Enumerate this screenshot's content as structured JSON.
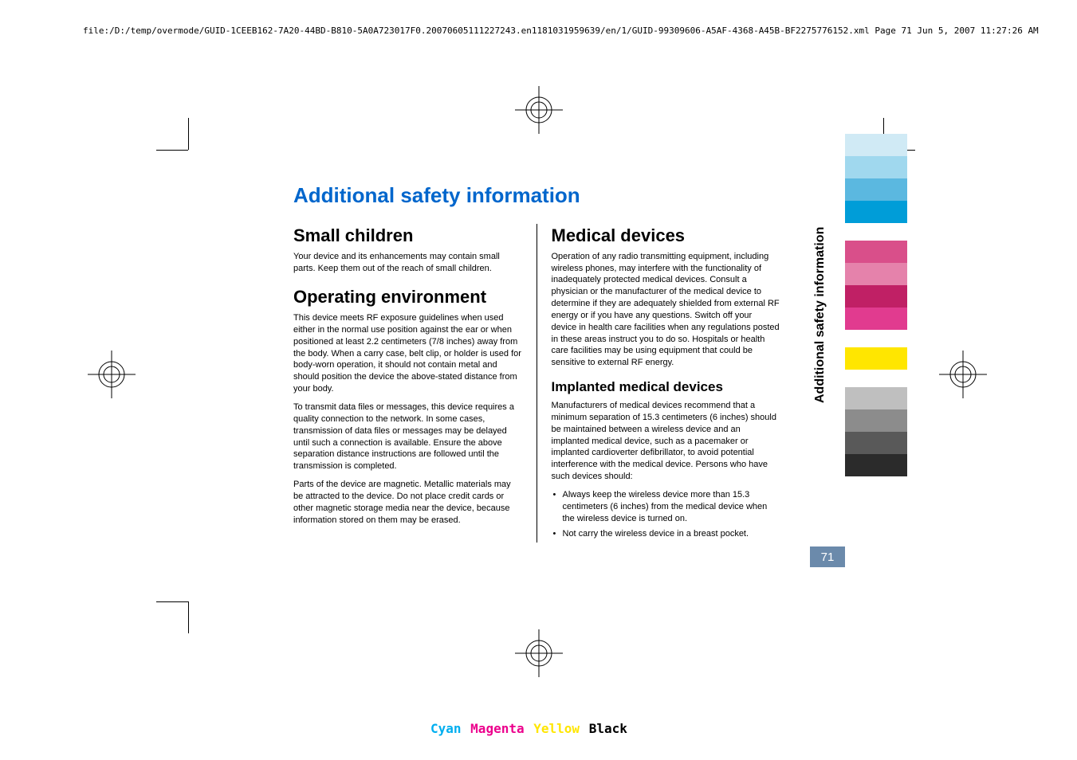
{
  "header_path": "file:/D:/temp/overmode/GUID-1CEEB162-7A20-44BD-B810-5A0A723017F0.20070605111227243.en1181031959639/en/1/GUID-99309606-A5AF-4368-A45B-BF2275776152.xml    Page 71    Jun 5, 2007 11:27:26 AM",
  "title": "Additional safety information",
  "sidebar_title": "Additional safety information",
  "page_number": "71",
  "col_left": {
    "h_small_children": "Small children",
    "p_small_children": "Your device and its enhancements may contain small parts. Keep them out of the reach of small children.",
    "h_op_env": "Operating environment",
    "p_op_env_1": "This device meets RF exposure guidelines when used either in the normal use position against the ear or when positioned at least 2.2 centimeters (7/8 inches) away from the body. When a carry case, belt clip, or holder is used for body-worn operation, it should not contain metal and should position the device the above-stated distance from your body.",
    "p_op_env_2": "To transmit data files or messages, this device requires a quality connection to the network. In some cases, transmission of data files or messages may be delayed until such a connection is available. Ensure the above separation distance instructions are followed until the transmission is completed.",
    "p_op_env_3": "Parts of the device are magnetic. Metallic materials may be attracted to the device. Do not place credit cards or other magnetic storage media near the device, because information stored on them may be erased."
  },
  "col_right": {
    "h_medical": "Medical devices",
    "p_medical": "Operation of any radio transmitting equipment, including wireless phones, may interfere with the functionality of inadequately protected medical devices. Consult a physician or the manufacturer of the medical device to determine if they are adequately shielded from external RF energy or if you have any questions. Switch off your device in health care facilities when any regulations posted in these areas instruct you to do so. Hospitals or health care facilities may be using equipment that could be sensitive to external RF energy.",
    "h_implanted": "Implanted medical devices",
    "p_implanted": "Manufacturers of medical devices recommend that a minimum separation of 15.3 centimeters (6 inches) should be maintained between a wireless device and an implanted medical device, such as a pacemaker or implanted cardioverter defibrillator, to avoid potential interference with the medical device. Persons who have such devices should:",
    "li_1": "Always keep the wireless device more than 15.3 centimeters (6 inches) from the medical device when the wireless device is turned on.",
    "li_2": "Not carry the wireless device in a breast pocket."
  },
  "cmyk": {
    "c": "Cyan",
    "m": "Magenta",
    "y": "Yellow",
    "k": "Black"
  },
  "colors": {
    "title": "#0066cc",
    "pagebox": "#6b8aab",
    "strips_top": [
      "#d0eaf5",
      "#a0d8ee",
      "#5bb8e0",
      "#009dd8"
    ],
    "strips_mid": [
      "#d94f8a",
      "#e582ab",
      "#c02065",
      "#e13b8f"
    ],
    "strips_low": [
      "#ffe600"
    ],
    "strips_gray": [
      "#bfbfbf",
      "#8c8c8c",
      "#595959",
      "#2b2b2b"
    ]
  }
}
